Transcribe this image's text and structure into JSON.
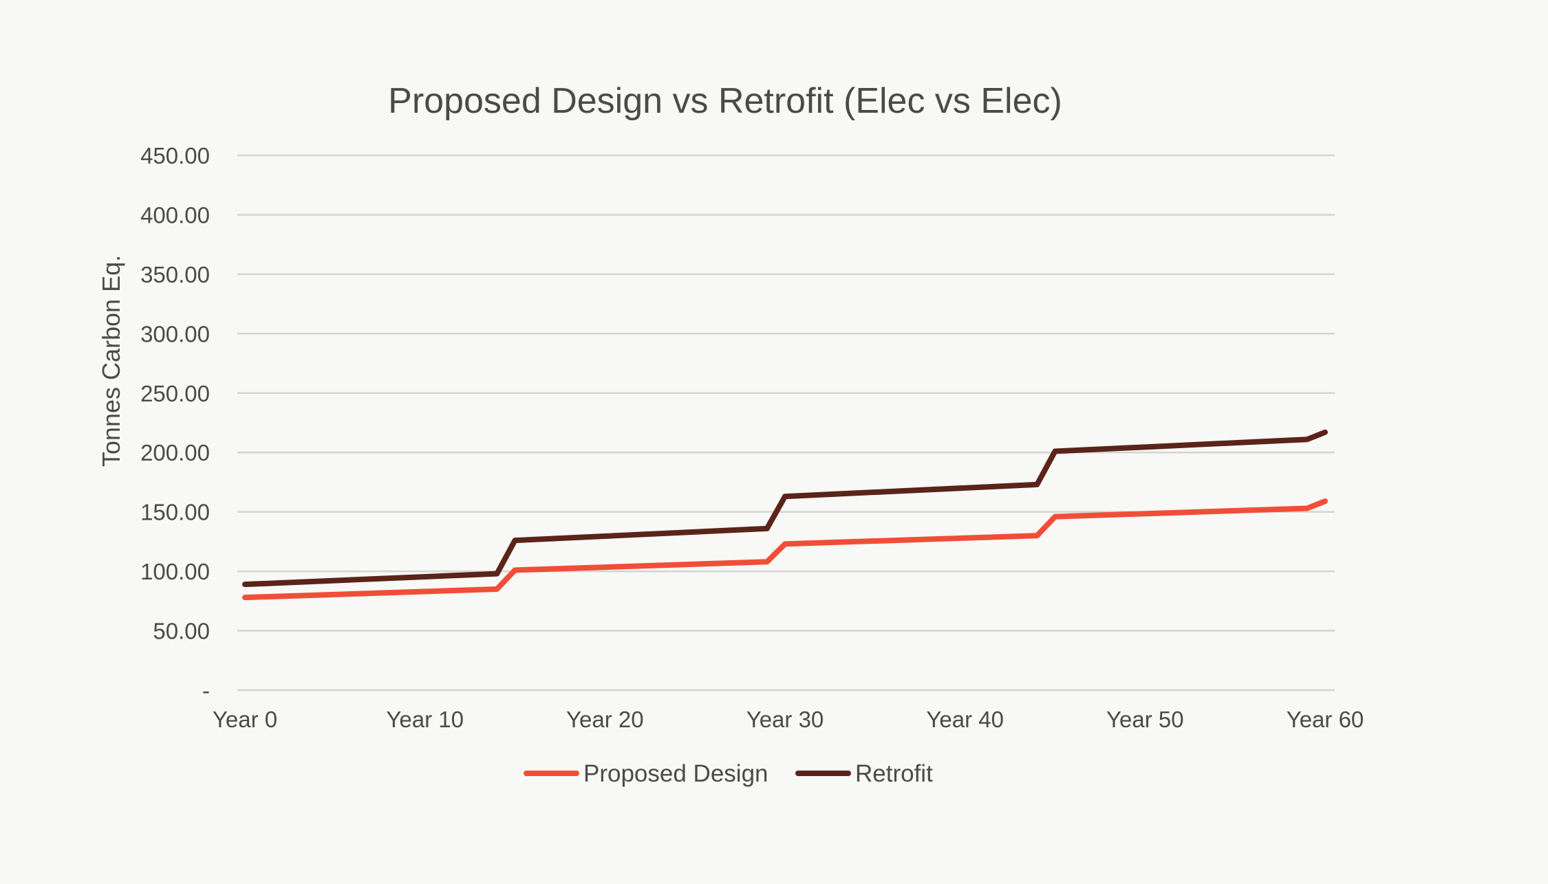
{
  "chart_data": {
    "type": "line",
    "title": "Proposed Design vs Retrofit (Elec vs Elec)",
    "xlabel": "",
    "ylabel": "Tonnes Carbon Eq.",
    "ylim": [
      0,
      450
    ],
    "y_ticks": [
      0,
      50,
      100,
      150,
      200,
      250,
      300,
      350,
      400,
      450
    ],
    "y_tick_labels": [
      "-",
      "50.00",
      "100.00",
      "150.00",
      "200.00",
      "250.00",
      "300.00",
      "350.00",
      "400.00",
      "450.00"
    ],
    "x_tick_labels": [
      "Year 0",
      "Year 10",
      "Year 20",
      "Year 30",
      "Year 40",
      "Year 50",
      "Year 60"
    ],
    "x_tick_values": [
      0,
      10,
      20,
      30,
      40,
      50,
      60
    ],
    "xlim": [
      0,
      60
    ],
    "grid": true,
    "legend_position": "bottom",
    "series": [
      {
        "name": "Proposed Design",
        "color": "#f04e37",
        "x": [
          0,
          14,
          15,
          29,
          30,
          44,
          45,
          59,
          60
        ],
        "values": [
          78,
          85,
          101,
          108,
          123,
          130,
          146,
          153,
          159
        ]
      },
      {
        "name": "Retrofit",
        "color": "#5a2419",
        "x": [
          0,
          14,
          15,
          29,
          30,
          44,
          45,
          59,
          60
        ],
        "values": [
          89,
          98,
          126,
          136,
          163,
          173,
          201,
          211,
          217
        ]
      }
    ]
  }
}
